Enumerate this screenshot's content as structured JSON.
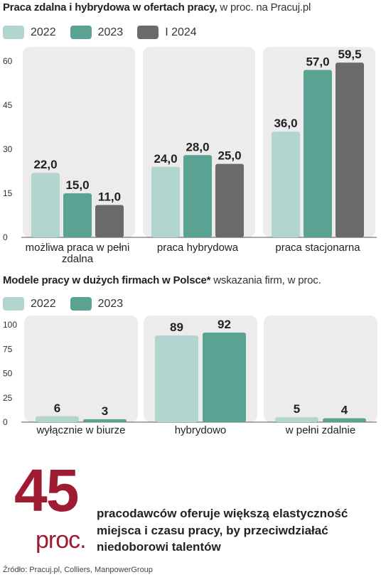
{
  "colors": {
    "c2022": "#b2d6cf",
    "c2023": "#5aa393",
    "c2024": "#6a6a6a",
    "panel": "#ececec",
    "accent": "#9e1b32"
  },
  "chart1": {
    "title_bold": "Praca  zdalna i hybrydowa w ofertach pracy,",
    "title_rest": " w proc. na Pracuj.pl",
    "legend": [
      "2022",
      "2023",
      "I 2024"
    ]
  },
  "chart2": {
    "title_bold": "Modele pracy w dużych firmach w Polsce*",
    "title_rest": " wskazania firm, w proc.",
    "legend": [
      "2022",
      "2023"
    ]
  },
  "chart_data": [
    {
      "type": "bar",
      "title": "Praca  zdalna i hybrydowa w ofertach pracy, w proc. na Pracuj.pl",
      "categories": [
        [
          "możliwa praca w pełni",
          "zdalna"
        ],
        [
          "praca  hybrydowa"
        ],
        [
          "praca stacjonarna"
        ]
      ],
      "series": [
        {
          "name": "2022",
          "values": [
            22.0,
            24.0,
            36.0
          ],
          "labels": [
            "22,0",
            "24,0",
            "36,0"
          ]
        },
        {
          "name": "2023",
          "values": [
            15.0,
            28.0,
            57.0
          ],
          "labels": [
            "15,0",
            "28,0",
            "57,0"
          ]
        },
        {
          "name": "I 2024",
          "values": [
            11.0,
            25.0,
            59.5
          ],
          "labels": [
            "11,0",
            "25,0",
            "59,5"
          ]
        }
      ],
      "ylim": [
        0,
        60
      ],
      "yticks": [
        0,
        15,
        30,
        45,
        60
      ],
      "grid": false,
      "legend": "top-left"
    },
    {
      "type": "bar",
      "title": "Modele pracy w dużych firmach w Polsce* wskazania firm, w proc.",
      "categories": [
        [
          "wyłącznie w biurze"
        ],
        [
          "hybrydowo"
        ],
        [
          "w pełni zdalnie"
        ]
      ],
      "series": [
        {
          "name": "2022",
          "values": [
            6,
            89,
            5
          ],
          "labels": [
            "6",
            "89",
            "5"
          ]
        },
        {
          "name": "2023",
          "values": [
            3,
            92,
            4
          ],
          "labels": [
            "3",
            "92",
            "4"
          ]
        }
      ],
      "ylim": [
        0,
        100
      ],
      "yticks": [
        0,
        25,
        50,
        75,
        100
      ],
      "grid": false,
      "legend": "top-left"
    }
  ],
  "highlight": {
    "number": "45",
    "unit": "proc.",
    "text": "pracodawców oferuje większą elastyczność miejsca i czasu pracy, by przeciwdziałać niedoborowi talentów"
  },
  "source": "Źródło: Pracuj.pl, Colliers, ManpowerGroup"
}
